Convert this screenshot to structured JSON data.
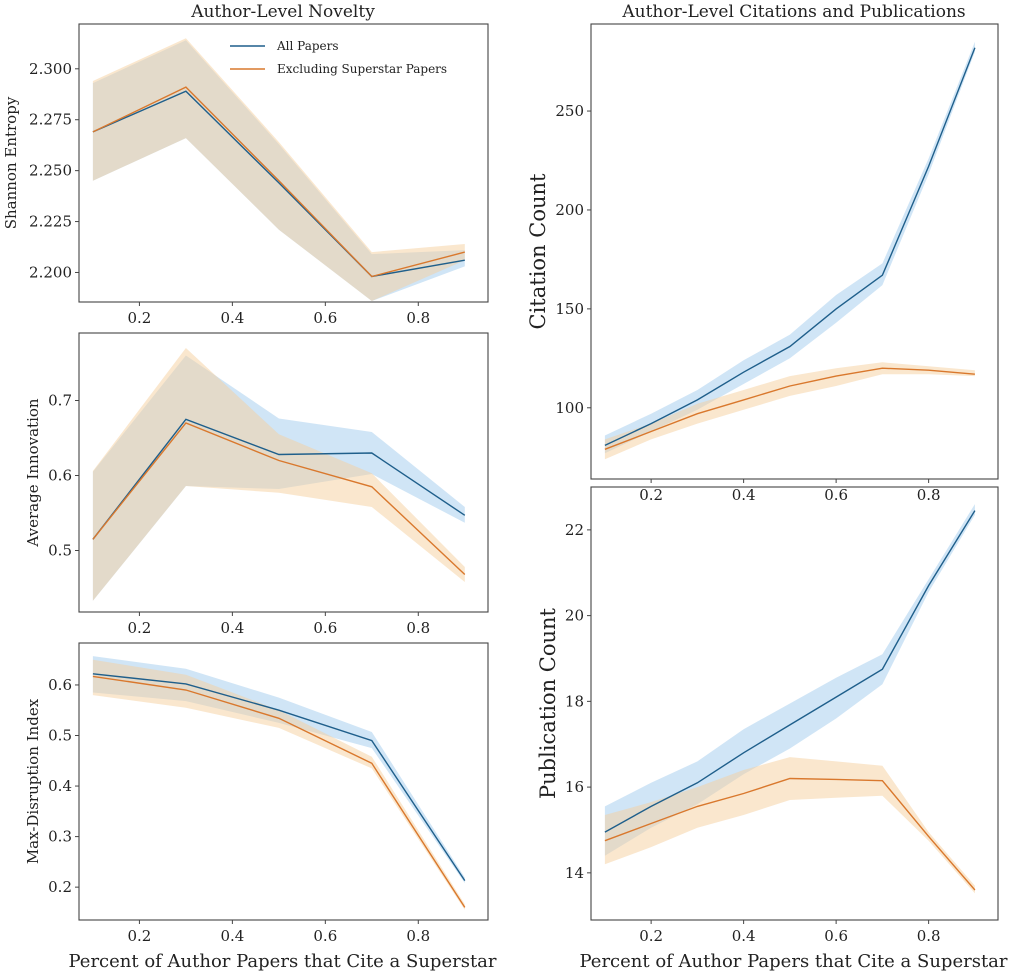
{
  "titles": {
    "left": "Author-Level Novelty",
    "right": "Author-Level Citations and Publications"
  },
  "colors": {
    "all_papers": "#1f5f8b",
    "all_papers_band": "#a9cfee",
    "excluding": "#d9782d",
    "excluding_band": "#f6cf9e"
  },
  "chart_data": [
    {
      "id": "shannon",
      "type": "line",
      "title": "Author-Level Novelty",
      "xlabel": "",
      "ylabel": "Shannon Entropy",
      "xlim": [
        0.07,
        0.95
      ],
      "ylim": [
        2.1855,
        2.322
      ],
      "xticks": [
        0.2,
        0.4,
        0.6,
        0.8
      ],
      "xtick_labels": [
        "0.2",
        "0.4",
        "0.6",
        "0.8"
      ],
      "yticks": [
        2.2,
        2.225,
        2.25,
        2.275,
        2.3
      ],
      "ytick_labels": [
        "2.200",
        "2.225",
        "2.250",
        "2.275",
        "2.300"
      ],
      "legend": {
        "placement": "top-right",
        "entries": [
          "All Papers",
          "Excluding Superstar Papers"
        ]
      },
      "x": [
        0.1,
        0.3,
        0.5,
        0.7,
        0.9
      ],
      "series": [
        {
          "name": "All Papers",
          "values": [
            2.269,
            2.289,
            2.244,
            2.198,
            2.206
          ],
          "lower": [
            2.245,
            2.266,
            2.221,
            2.186,
            2.203
          ],
          "upper": [
            2.293,
            2.314,
            2.263,
            2.209,
            2.211
          ]
        },
        {
          "name": "Excluding Superstar Papers",
          "values": [
            2.269,
            2.291,
            2.245,
            2.198,
            2.21
          ],
          "lower": [
            2.245,
            2.266,
            2.221,
            2.186,
            2.206
          ],
          "upper": [
            2.294,
            2.315,
            2.264,
            2.21,
            2.214
          ]
        }
      ]
    },
    {
      "id": "innovation",
      "type": "line",
      "xlabel": "",
      "ylabel": "Average Innovation",
      "xlim": [
        0.07,
        0.95
      ],
      "ylim": [
        0.418,
        0.79
      ],
      "xticks": [
        0.2,
        0.4,
        0.6,
        0.8
      ],
      "xtick_labels": [
        "0.2",
        "0.4",
        "0.6",
        "0.8"
      ],
      "yticks": [
        0.5,
        0.6,
        0.7
      ],
      "ytick_labels": [
        "0.5",
        "0.6",
        "0.7"
      ],
      "x": [
        0.1,
        0.3,
        0.5,
        0.7,
        0.9
      ],
      "series": [
        {
          "name": "All Papers",
          "values": [
            0.515,
            0.675,
            0.628,
            0.63,
            0.547
          ],
          "lower": [
            0.433,
            0.586,
            0.582,
            0.602,
            0.537
          ],
          "upper": [
            0.605,
            0.76,
            0.676,
            0.658,
            0.558
          ]
        },
        {
          "name": "Excluding Superstar Papers",
          "values": [
            0.515,
            0.67,
            0.62,
            0.585,
            0.468
          ],
          "lower": [
            0.433,
            0.586,
            0.577,
            0.558,
            0.458
          ],
          "upper": [
            0.606,
            0.77,
            0.655,
            0.603,
            0.478
          ]
        }
      ]
    },
    {
      "id": "disruption",
      "type": "line",
      "xlabel": "Percent of Author Papers that Cite a Superstar",
      "ylabel": "Max-Disruption Index",
      "xlim": [
        0.07,
        0.95
      ],
      "ylim": [
        0.135,
        0.683
      ],
      "xticks": [
        0.2,
        0.4,
        0.6,
        0.8
      ],
      "xtick_labels": [
        "0.2",
        "0.4",
        "0.6",
        "0.8"
      ],
      "yticks": [
        0.2,
        0.3,
        0.4,
        0.5,
        0.6
      ],
      "ytick_labels": [
        "0.2",
        "0.3",
        "0.4",
        "0.5",
        "0.6"
      ],
      "x": [
        0.1,
        0.3,
        0.5,
        0.7,
        0.9
      ],
      "series": [
        {
          "name": "All Papers",
          "values": [
            0.622,
            0.602,
            0.55,
            0.49,
            0.213
          ],
          "lower": [
            0.585,
            0.568,
            0.525,
            0.475,
            0.208
          ],
          "upper": [
            0.657,
            0.632,
            0.575,
            0.507,
            0.219
          ]
        },
        {
          "name": "Excluding Superstar Papers",
          "values": [
            0.617,
            0.59,
            0.534,
            0.445,
            0.16
          ],
          "lower": [
            0.58,
            0.555,
            0.515,
            0.435,
            0.155
          ],
          "upper": [
            0.65,
            0.62,
            0.55,
            0.458,
            0.166
          ]
        }
      ]
    },
    {
      "id": "citations",
      "type": "line",
      "title": "Author-Level Citations and Publications",
      "xlabel": "",
      "ylabel": "Citation Count",
      "xlim": [
        0.07,
        0.95
      ],
      "ylim": [
        64,
        294
      ],
      "xticks": [
        0.2,
        0.4,
        0.6,
        0.8
      ],
      "xtick_labels": [
        "0.2",
        "0.4",
        "0.6",
        "0.8"
      ],
      "yticks": [
        100,
        150,
        200,
        250
      ],
      "ytick_labels": [
        "100",
        "150",
        "200",
        "250"
      ],
      "x": [
        0.1,
        0.2,
        0.3,
        0.4,
        0.5,
        0.6,
        0.7,
        0.8,
        0.9
      ],
      "series": [
        {
          "name": "All Papers",
          "values": [
            81,
            92,
            104,
            118,
            131,
            150,
            167,
            222,
            282
          ],
          "lower": [
            77,
            88,
            99,
            112,
            125,
            143,
            162,
            218,
            280
          ],
          "upper": [
            86,
            97,
            109,
            124,
            137,
            157,
            173,
            226,
            285
          ]
        },
        {
          "name": "Excluding Superstar Papers",
          "values": [
            79,
            88,
            97,
            104,
            111,
            116,
            120,
            119,
            117
          ],
          "lower": [
            74,
            84,
            92,
            99,
            106,
            111,
            117,
            117,
            116
          ],
          "upper": [
            84,
            92,
            102,
            109,
            116,
            120,
            123,
            121,
            119
          ]
        }
      ]
    },
    {
      "id": "publications",
      "type": "line",
      "xlabel": "Percent of Author Papers that Cite a Superstar",
      "ylabel": "Publication Count",
      "xlim": [
        0.07,
        0.95
      ],
      "ylim": [
        12.9,
        23.0
      ],
      "xticks": [
        0.2,
        0.4,
        0.6,
        0.8
      ],
      "xtick_labels": [
        "0.2",
        "0.4",
        "0.6",
        "0.8"
      ],
      "yticks": [
        14,
        16,
        18,
        20,
        22
      ],
      "ytick_labels": [
        "14",
        "16",
        "18",
        "20",
        "22"
      ],
      "x": [
        0.1,
        0.2,
        0.3,
        0.4,
        0.5,
        0.6,
        0.7,
        0.8,
        0.9
      ],
      "series": [
        {
          "name": "All Papers",
          "values": [
            14.95,
            15.55,
            16.1,
            16.8,
            17.45,
            18.1,
            18.75,
            20.7,
            22.45
          ],
          "lower": [
            14.4,
            15.05,
            15.6,
            16.3,
            16.9,
            17.6,
            18.4,
            20.55,
            22.35
          ],
          "upper": [
            15.55,
            16.1,
            16.6,
            17.35,
            17.95,
            18.55,
            19.1,
            20.85,
            22.6
          ]
        },
        {
          "name": "Excluding Superstar Papers",
          "values": [
            14.75,
            15.15,
            15.55,
            15.85,
            16.2,
            16.18,
            16.15,
            14.85,
            13.6
          ],
          "lower": [
            14.2,
            14.6,
            15.05,
            15.35,
            15.7,
            15.75,
            15.8,
            14.75,
            13.52
          ],
          "upper": [
            15.35,
            15.65,
            16.0,
            16.4,
            16.7,
            16.6,
            16.5,
            14.95,
            13.7
          ]
        }
      ]
    }
  ]
}
